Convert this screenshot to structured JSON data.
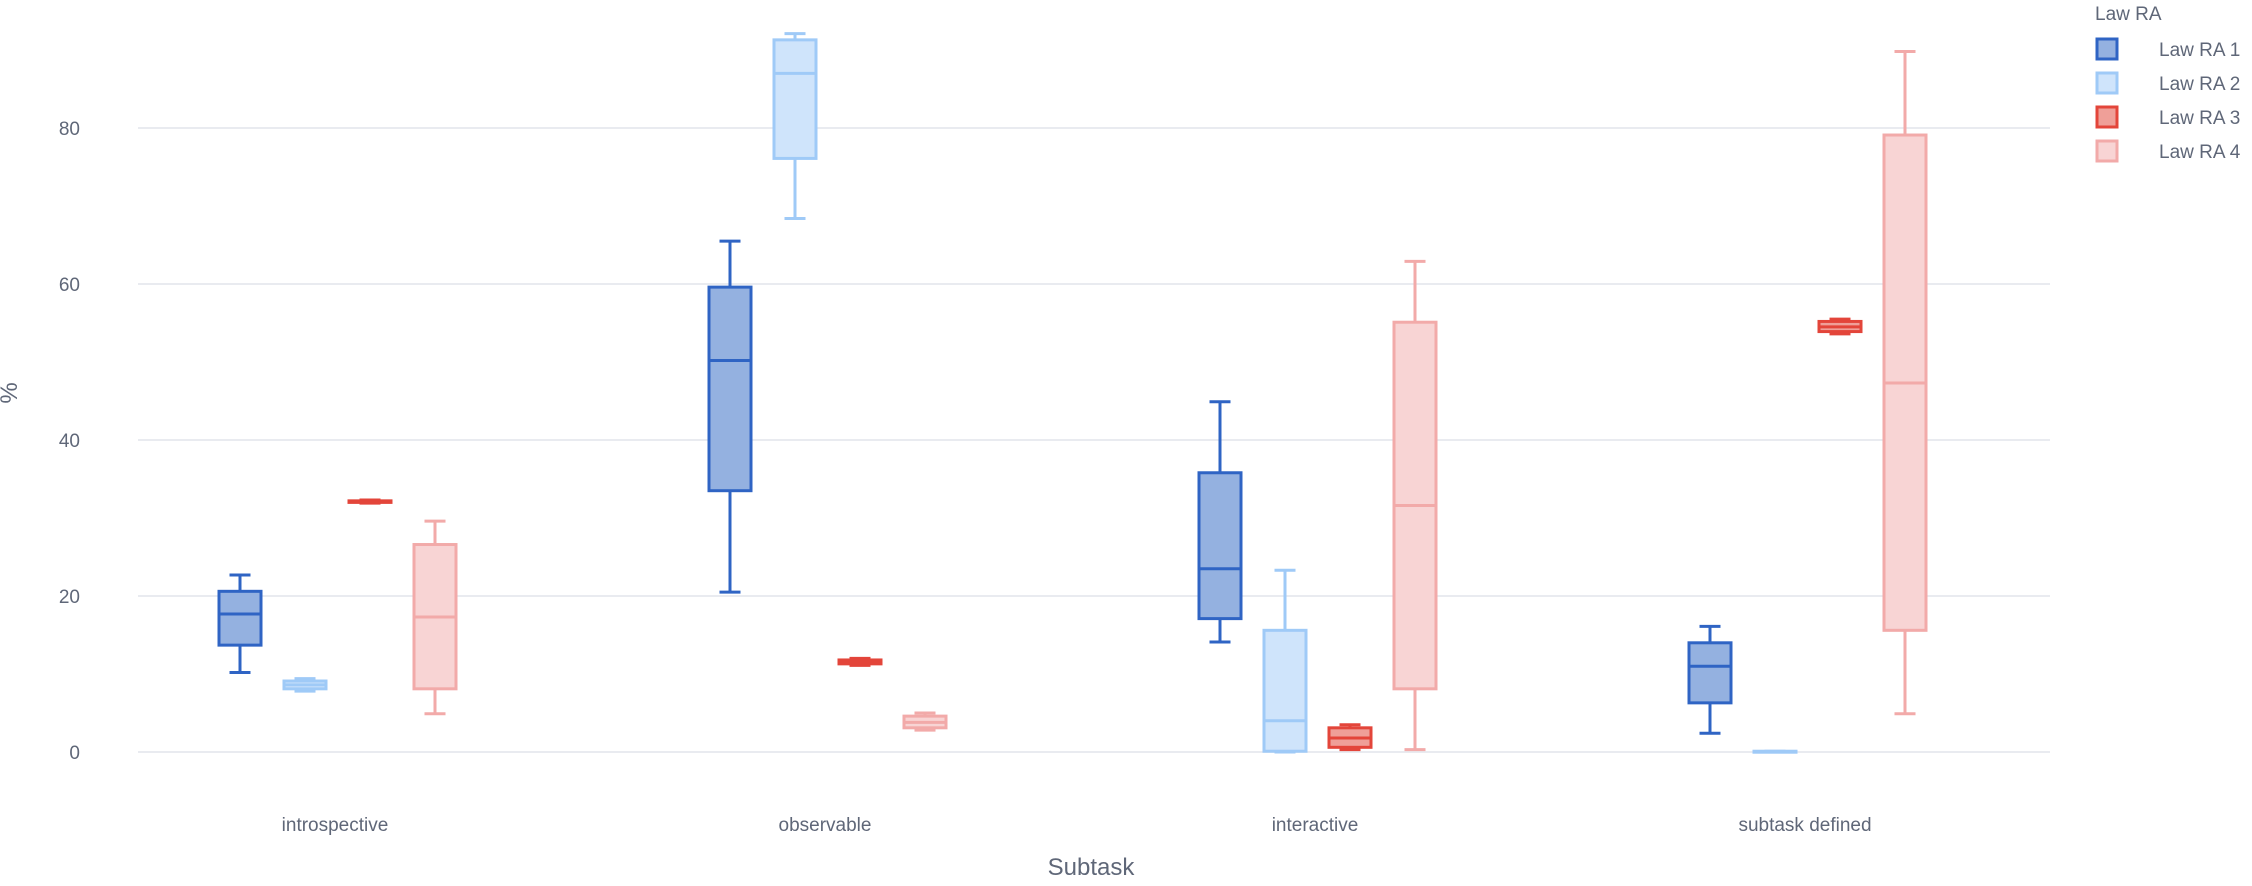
{
  "chart_data": {
    "type": "box",
    "title": "",
    "xlabel": "Subtask",
    "ylabel": "%",
    "ylim": [
      -4,
      96
    ],
    "yticks": [
      0,
      20,
      40,
      60,
      80
    ],
    "categories": [
      "introspective",
      "observable",
      "interactive",
      "subtask defined"
    ],
    "legend": {
      "title": "Law RA",
      "position": "top-right"
    },
    "grid": true,
    "series": [
      {
        "name": "Law RA 1",
        "color": "#2f64c4",
        "fill": "#94b1e0",
        "boxes": [
          {
            "category": "introspective",
            "min": 10.2,
            "q1": 13.7,
            "median": 17.7,
            "q3": 20.6,
            "max": 22.7
          },
          {
            "category": "observable",
            "min": 20.5,
            "q1": 33.5,
            "median": 50.2,
            "q3": 59.6,
            "max": 65.5
          },
          {
            "category": "interactive",
            "min": 14.1,
            "q1": 17.1,
            "median": 23.5,
            "q3": 35.8,
            "max": 44.9
          },
          {
            "category": "subtask defined",
            "min": 2.4,
            "q1": 6.3,
            "median": 11.0,
            "q3": 14.0,
            "max": 16.1
          }
        ]
      },
      {
        "name": "Law RA 2",
        "color": "#9fcaf7",
        "fill": "#cfe4fb",
        "boxes": [
          {
            "category": "introspective",
            "min": 7.8,
            "q1": 8.1,
            "median": 8.6,
            "q3": 9.1,
            "max": 9.4
          },
          {
            "category": "observable",
            "min": 68.4,
            "q1": 76.1,
            "median": 87.0,
            "q3": 91.3,
            "max": 92.1
          },
          {
            "category": "interactive",
            "min": 0.0,
            "q1": 0.1,
            "median": 4.0,
            "q3": 15.6,
            "max": 23.3
          },
          {
            "category": "subtask defined",
            "min": 0.0,
            "q1": 0.0,
            "median": 0.0,
            "q3": 0.1,
            "max": 0.1
          }
        ]
      },
      {
        "name": "Law RA 3",
        "color": "#e3453a",
        "fill": "#ef9f98",
        "boxes": [
          {
            "category": "introspective",
            "min": 31.9,
            "q1": 32.0,
            "median": 32.1,
            "q3": 32.2,
            "max": 32.3
          },
          {
            "category": "observable",
            "min": 11.1,
            "q1": 11.3,
            "median": 11.6,
            "q3": 11.8,
            "max": 12.0
          },
          {
            "category": "interactive",
            "min": 0.3,
            "q1": 0.6,
            "median": 1.8,
            "q3": 3.1,
            "max": 3.5
          },
          {
            "category": "subtask defined",
            "min": 53.6,
            "q1": 53.9,
            "median": 54.5,
            "q3": 55.2,
            "max": 55.5
          }
        ]
      },
      {
        "name": "Law RA 4",
        "color": "#f2aaa9",
        "fill": "#f8d4d4",
        "boxes": [
          {
            "category": "introspective",
            "min": 4.9,
            "q1": 8.1,
            "median": 17.3,
            "q3": 26.6,
            "max": 29.6
          },
          {
            "category": "observable",
            "min": 2.8,
            "q1": 3.1,
            "median": 3.8,
            "q3": 4.6,
            "max": 5.0
          },
          {
            "category": "interactive",
            "min": 0.3,
            "q1": 8.1,
            "median": 31.6,
            "q3": 55.1,
            "max": 62.9
          },
          {
            "category": "subtask defined",
            "min": 4.9,
            "q1": 15.6,
            "median": 47.3,
            "q3": 79.1,
            "max": 89.8
          }
        ]
      }
    ]
  }
}
